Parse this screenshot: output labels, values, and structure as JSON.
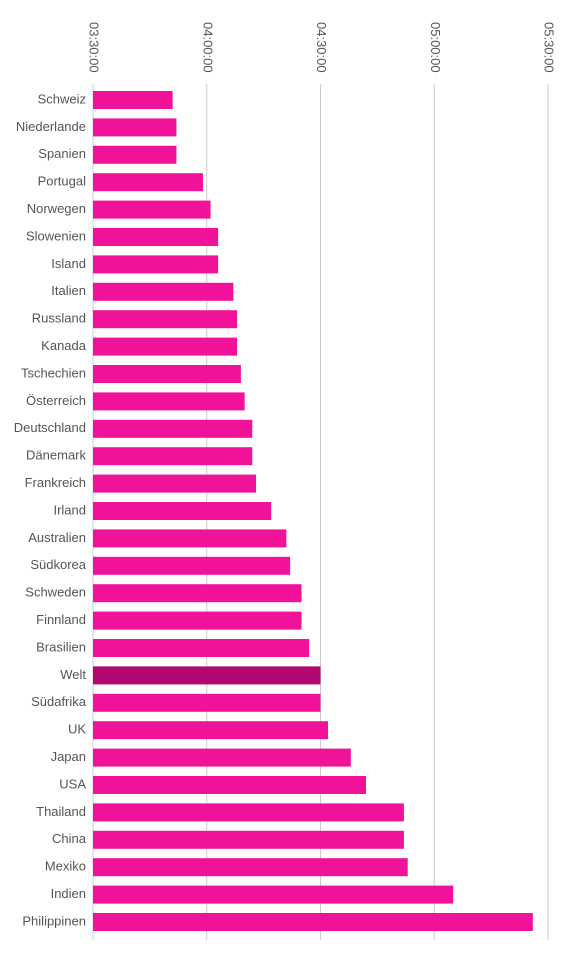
{
  "chart_data": {
    "type": "hbar",
    "categories": [
      "Schweiz",
      "Niederlande",
      "Spanien",
      "Portugal",
      "Norwegen",
      "Slowenien",
      "Island",
      "Italien",
      "Russland",
      "Kanada",
      "Tschechien",
      "Österreich",
      "Deutschland",
      "Dänemark",
      "Frankreich",
      "Irland",
      "Australien",
      "Südkorea",
      "Schweden",
      "Finnland",
      "Brasilien",
      "Welt",
      "Südafrika",
      "UK",
      "Japan",
      "USA",
      "Thailand",
      "China",
      "Mexiko",
      "Indien",
      "Philippinen"
    ],
    "values": [
      231,
      232,
      232,
      239,
      241,
      243,
      243,
      247,
      248,
      248,
      249,
      250,
      252,
      252,
      253,
      257,
      261,
      262,
      265,
      265,
      267,
      270,
      270,
      272,
      278,
      282,
      292,
      292,
      293,
      305,
      326
    ],
    "colors": [
      "#f0139a",
      "#f0139a",
      "#f0139a",
      "#f0139a",
      "#f0139a",
      "#f0139a",
      "#f0139a",
      "#f0139a",
      "#f0139a",
      "#f0139a",
      "#f0139a",
      "#f0139a",
      "#f0139a",
      "#f0139a",
      "#f0139a",
      "#f0139a",
      "#f0139a",
      "#f0139a",
      "#f0139a",
      "#f0139a",
      "#f0139a",
      "#b0086e",
      "#f0139a",
      "#f0139a",
      "#f0139a",
      "#f0139a",
      "#f0139a",
      "#f0139a",
      "#f0139a",
      "#f0139a",
      "#f0139a"
    ],
    "xlim": [
      210,
      330
    ],
    "xticks": [
      {
        "value": 210,
        "label": "03:30:00"
      },
      {
        "value": 240,
        "label": "04:00:00"
      },
      {
        "value": 270,
        "label": "04:30:00"
      },
      {
        "value": 300,
        "label": "05:00:00"
      },
      {
        "value": 330,
        "label": "05:30:00"
      }
    ],
    "grid": true
  }
}
